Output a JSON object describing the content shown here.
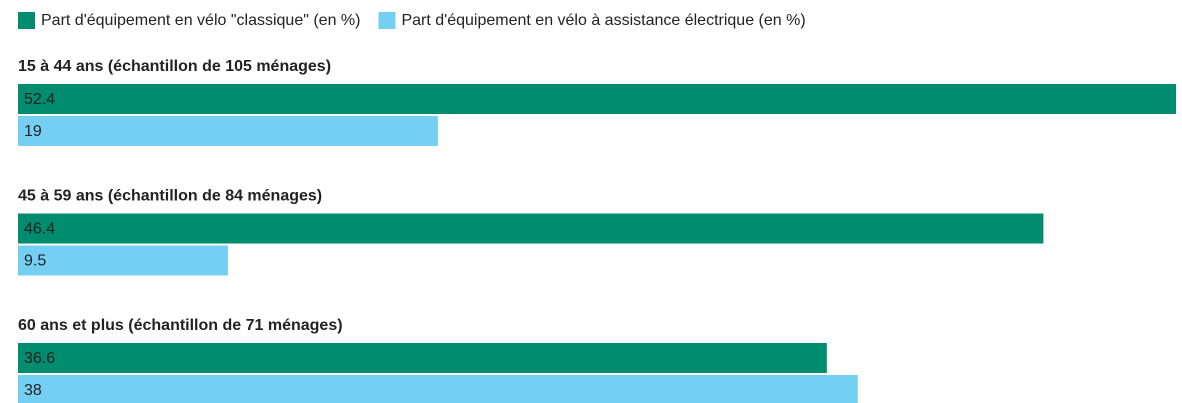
{
  "chart_data": {
    "type": "bar",
    "orientation": "horizontal",
    "legend": "top-left",
    "categories": [
      "15 à 44 ans (échantillon de 105 ménages)",
      "45 à 59 ans (échantillon de 84 ménages)",
      "60 ans et plus (échantillon de 71 ménages)"
    ],
    "series": [
      {
        "name": "Part d'équipement en vélo \"classique\" (en %)",
        "color": "#008c6e",
        "label_color": "#ffffff",
        "values": [
          52.4,
          46.4,
          36.6
        ]
      },
      {
        "name": "Part d'équipement en vélo à assistance électrique (en %)",
        "color": "#74cff3",
        "label_color": "#222222",
        "values": [
          19,
          9.5,
          38
        ]
      }
    ]
  }
}
